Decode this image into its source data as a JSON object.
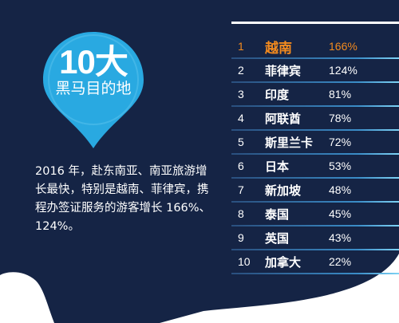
{
  "badge": {
    "number": "10大",
    "subtitle": "黑马目的地"
  },
  "description": "2016 年，赴东南亚、南亚旅游增长最快，特别是越南、菲律宾，携程办签证服务的游客增长 166%、124%。",
  "ranking": [
    {
      "rank": "1",
      "name": "越南",
      "pct": "166%"
    },
    {
      "rank": "2",
      "name": "菲律宾",
      "pct": "124%"
    },
    {
      "rank": "3",
      "name": "印度",
      "pct": "81%"
    },
    {
      "rank": "4",
      "name": "阿联酋",
      "pct": "78%"
    },
    {
      "rank": "5",
      "name": "斯里兰卡",
      "pct": "72%"
    },
    {
      "rank": "6",
      "name": "日本",
      "pct": "53%"
    },
    {
      "rank": "7",
      "name": "新加坡",
      "pct": "48%"
    },
    {
      "rank": "8",
      "name": "泰国",
      "pct": "45%"
    },
    {
      "rank": "9",
      "name": "英国",
      "pct": "43%"
    },
    {
      "rank": "10",
      "name": "加拿大",
      "pct": "22%"
    }
  ],
  "colors": {
    "background": "#152445",
    "badge": "#29a9e1",
    "highlight": "#f28a1e"
  }
}
